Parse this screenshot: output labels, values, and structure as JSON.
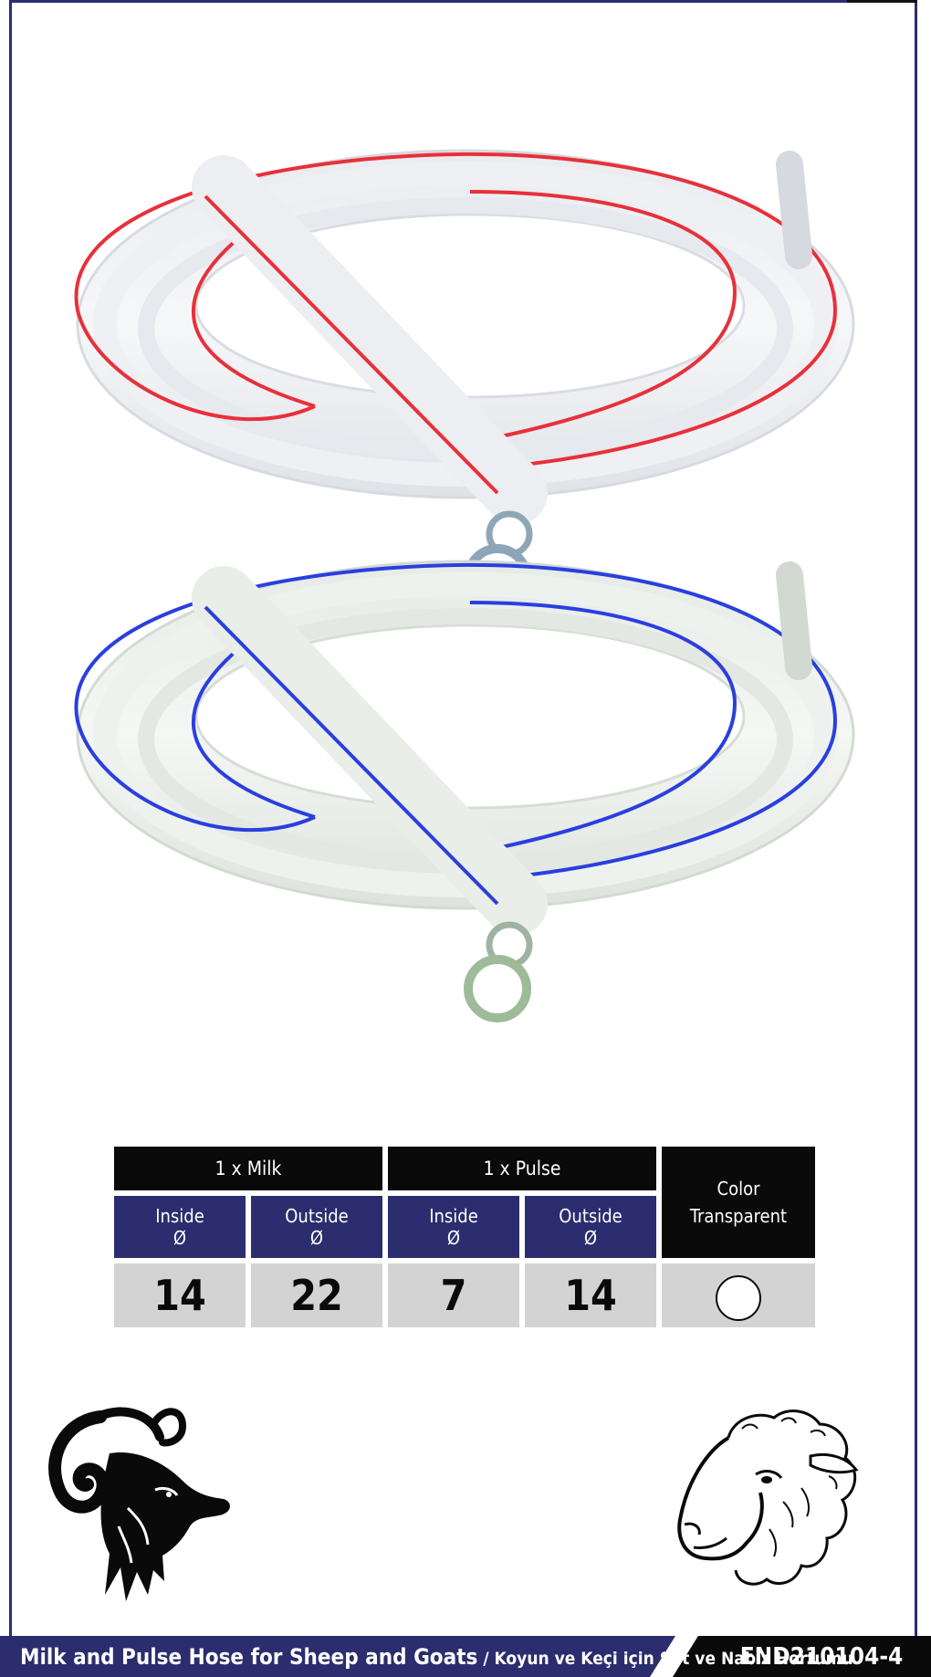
{
  "colors": {
    "navy": "#2b2d6e",
    "black": "#0a0a0a",
    "value_cell": "#d3d3d3",
    "red_stripe": "#e8303a",
    "blue_stripe": "#2a3fe0"
  },
  "images": {
    "product": "coiled-clear-hoses-red-and-blue-stripes",
    "left_animal": "ram-head-icon",
    "right_animal": "sheep-head-icon"
  },
  "specs": {
    "milk_group": "1 x Milk",
    "pulse_group": "1 x Pulse",
    "color_header_line1": "Color",
    "color_header_line2": "Transparent",
    "inside_label": "Inside",
    "outside_label": "Outside",
    "diameter_symbol": "Ø",
    "milk_inside": "14",
    "milk_outside": "22",
    "pulse_inside": "7",
    "pulse_outside": "14",
    "color_swatch": "transparent"
  },
  "footer": {
    "title_en": "Milk and Pulse Hose for Sheep and Goats",
    "separator": " / ",
    "title_tr": "Koyun ve Keçi için Süt ve Nabız Hortumu",
    "code": "END210104-4"
  }
}
